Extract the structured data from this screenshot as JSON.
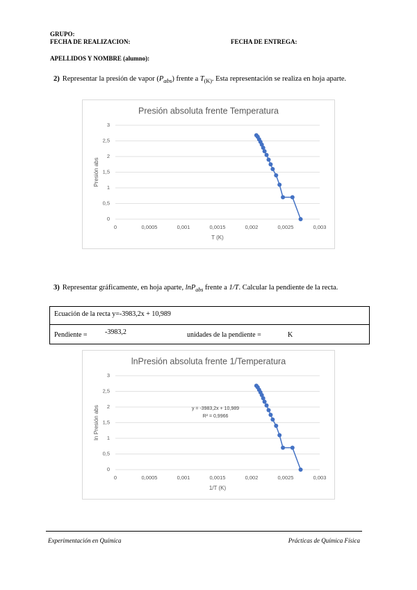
{
  "header": {
    "group": "GRUPO:",
    "date_done": "FECHA DE REALIZACION:",
    "date_due": "FECHA DE ENTREGA:",
    "name": "APELLIDOS Y NOMBRE (alumno):"
  },
  "sections": [
    {
      "number": "2)",
      "parts": [
        "Representar la presión de vapor (",
        "P",
        "abs",
        ") frente a ",
        "T",
        "(K)",
        ". Esta representación se realiza en hoja aparte."
      ]
    },
    {
      "number": "3)",
      "parts": [
        "Representar gráficamente, en hoja aparte, ",
        "lnP",
        "abs",
        " frente a ",
        "1/T",
        ". Calcular la pendiente de la recta."
      ]
    }
  ],
  "table": {
    "rows": [
      [
        "Ecuación de la recta  y=-3983,2x + 10,989"
      ],
      [
        "Pendiente =",
        "-3983,2",
        "unidades de la pendiente =",
        "K"
      ]
    ]
  },
  "footer": {
    "left": "Experimentación en Química",
    "right": "Prácticas de Química Física"
  },
  "chart_data": [
    {
      "type": "line",
      "title": "Presión absoluta frente Temperatura",
      "xlabel": "T (K)",
      "ylabel": "Presión abs",
      "x": [
        0.00207,
        0.00209,
        0.00211,
        0.00213,
        0.00215,
        0.00217,
        0.00219,
        0.00222,
        0.00225,
        0.00228,
        0.00231,
        0.00236,
        0.00241,
        0.00246,
        0.0026,
        0.00272
      ],
      "values": [
        2.68,
        2.63,
        2.55,
        2.47,
        2.38,
        2.28,
        2.17,
        2.05,
        1.9,
        1.75,
        1.6,
        1.4,
        1.1,
        0.7,
        0.7,
        0
      ],
      "color": "#4472c4",
      "markers": true,
      "grid": true,
      "xlim": [
        0,
        0.003
      ],
      "ylim": [
        0,
        3
      ],
      "xticks": [
        0,
        {
          "value": 0.0005,
          "label": "0,0005"
        },
        {
          "value": 0.001,
          "label": "0,001"
        },
        {
          "value": 0.0015,
          "label": "0,0015"
        },
        {
          "value": 0.002,
          "label": "0,002"
        },
        {
          "value": 0.0025,
          "label": "0,0025"
        },
        {
          "value": 0.003,
          "label": "0,003"
        }
      ],
      "yticks": [
        0,
        {
          "value": 0.5,
          "label": "0,5"
        },
        1,
        {
          "value": 1.5,
          "label": "1,5"
        },
        2,
        {
          "value": 2.5,
          "label": "2,5"
        },
        3
      ]
    },
    {
      "type": "line",
      "title": "lnPresión absoluta frente 1/Temperatura",
      "xlabel": "1/T (K)",
      "ylabel": "ln Presión abs",
      "x": [
        0.00207,
        0.00209,
        0.00211,
        0.00213,
        0.00215,
        0.00217,
        0.00219,
        0.00222,
        0.00225,
        0.00228,
        0.00231,
        0.00236,
        0.00241,
        0.00246,
        0.0026,
        0.00272
      ],
      "values": [
        2.68,
        2.63,
        2.55,
        2.47,
        2.38,
        2.28,
        2.17,
        2.05,
        1.9,
        1.75,
        1.6,
        1.4,
        1.1,
        0.7,
        0.7,
        0
      ],
      "color": "#4472c4",
      "markers": true,
      "grid": true,
      "annotations": [
        "y = -3983,2x + 10,989",
        "R² = 0,9966"
      ],
      "xlim": [
        0,
        0.003
      ],
      "ylim": [
        0,
        3
      ],
      "xticks": [
        0,
        {
          "value": 0.0005,
          "label": "0,0005"
        },
        {
          "value": 0.001,
          "label": "0,001"
        },
        {
          "value": 0.0015,
          "label": "0,0015"
        },
        {
          "value": 0.002,
          "label": "0,002"
        },
        {
          "value": 0.0025,
          "label": "0,0025"
        },
        {
          "value": 0.003,
          "label": "0,003"
        }
      ],
      "yticks": [
        0,
        {
          "value": 0.5,
          "label": "0,5"
        },
        1,
        {
          "value": 1.5,
          "label": "1,5"
        },
        2,
        {
          "value": 2.5,
          "label": "2,5"
        },
        3
      ]
    }
  ]
}
